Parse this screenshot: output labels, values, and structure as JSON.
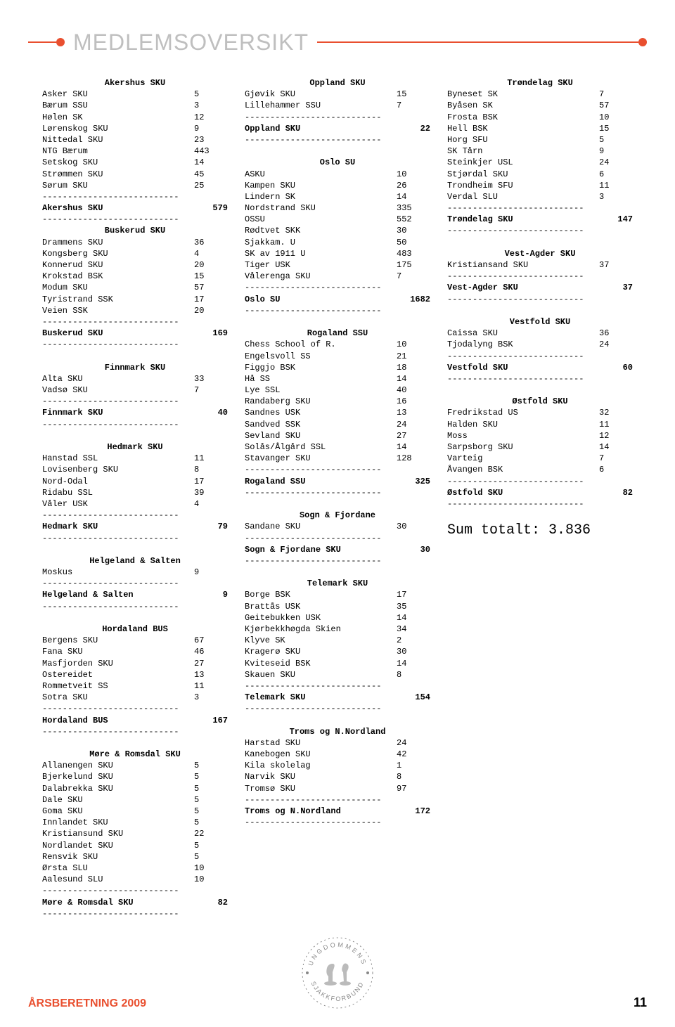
{
  "header": {
    "title": "MEDLEMSOVERSIKT"
  },
  "footer": {
    "left": "ÅRSBERETNING 2009",
    "page": "11"
  },
  "sum_total_label": "Sum totalt: 3.836",
  "dash": "---------------------------",
  "sections": [
    {
      "title": "Akershus SKU",
      "col": 0,
      "items": [
        [
          "Asker SKU",
          "5"
        ],
        [
          "Bærum SSU",
          "3"
        ],
        [
          "Hølen SK",
          "12"
        ],
        [
          "Lørenskog SKU",
          "9"
        ],
        [
          "Nittedal SKU",
          "23"
        ],
        [
          "NTG Bærum",
          "443"
        ],
        [
          "Setskog SKU",
          "14"
        ],
        [
          "Strømmen SKU",
          "45"
        ],
        [
          "Sørum SKU",
          "25"
        ]
      ],
      "total": [
        "Akershus SKU",
        "579"
      ]
    },
    {
      "title": "Buskerud SKU",
      "col": 0,
      "items": [
        [
          "Drammens SKU",
          "36"
        ],
        [
          "Kongsberg SKU",
          "4"
        ],
        [
          "Konnerud SKU",
          "20"
        ],
        [
          "Krokstad BSK",
          "15"
        ],
        [
          "Modum SKU",
          "57"
        ],
        [
          "Tyristrand SSK",
          "17"
        ],
        [
          "Veien SSK",
          "20"
        ]
      ],
      "total": [
        "Buskerud SKU",
        "169"
      ]
    },
    {
      "title": "Finnmark SKU",
      "col": 0,
      "blank_before": true,
      "items": [
        [
          "Alta SKU",
          "33"
        ],
        [
          "Vadsø SKU",
          "7"
        ]
      ],
      "total": [
        "Finnmark SKU",
        "40"
      ]
    },
    {
      "title": "Hedmark SKU",
      "col": 0,
      "blank_before": true,
      "items": [
        [
          "Hanstad SSL",
          "11"
        ],
        [
          "Lovisenberg SKU",
          "8"
        ],
        [
          "Nord-Odal",
          "17"
        ],
        [
          "Ridabu SSL",
          "39"
        ],
        [
          "Våler USK",
          "4"
        ]
      ],
      "total": [
        "Hedmark SKU",
        "79"
      ]
    },
    {
      "title": "Helgeland & Salten",
      "col": 0,
      "blank_before": true,
      "items": [
        [
          "Moskus",
          "9"
        ]
      ],
      "total": [
        "Helgeland & Salten",
        "9"
      ]
    },
    {
      "title": "Hordaland BUS",
      "col": 0,
      "blank_before": true,
      "items": [
        [
          "Bergens SKU",
          "67"
        ],
        [
          "Fana SKU",
          "46"
        ],
        [
          "Masfjorden SKU",
          "27"
        ],
        [
          "Ostereidet",
          "13"
        ],
        [
          "Rommetveit SS",
          "11"
        ],
        [
          "Sotra SKU",
          "3"
        ]
      ],
      "total": [
        "Hordaland BUS",
        "167"
      ]
    },
    {
      "title": "Møre & Romsdal SKU",
      "col": 0,
      "blank_before": true,
      "items": [
        [
          "Allanengen SKU",
          "5"
        ],
        [
          "Bjerkelund SKU",
          "5"
        ],
        [
          "Dalabrekka SKU",
          "5"
        ],
        [
          "Dale SKU",
          "5"
        ],
        [
          "Goma SKU",
          "5"
        ],
        [
          "Innlandet SKU",
          "5"
        ],
        [
          "Kristiansund SKU",
          "22"
        ],
        [
          "Nordlandet SKU",
          "5"
        ],
        [
          "Rensvik SKU",
          "5"
        ],
        [
          "Ørsta SLU",
          "10"
        ],
        [
          "Aalesund SLU",
          "10"
        ]
      ],
      "total": [
        "Møre & Romsdal SKU",
        "82"
      ]
    },
    {
      "title": "Oppland SKU",
      "col": 1,
      "items": [
        [
          "Gjøvik SKU",
          "15"
        ],
        [
          "Lillehammer SSU",
          "7"
        ]
      ],
      "total": [
        "Oppland SKU",
        "22"
      ]
    },
    {
      "title": "Oslo SU",
      "col": 1,
      "blank_before": true,
      "items": [
        [
          "ASKU",
          "10"
        ],
        [
          "Kampen SKU",
          "26"
        ],
        [
          "Lindern SK",
          "14"
        ],
        [
          "Nordstrand SKU",
          "335"
        ],
        [
          "OSSU",
          "552"
        ],
        [
          "Rødtvet SKK",
          "30"
        ],
        [
          "Sjakkam. U",
          "50"
        ],
        [
          "SK av 1911 U",
          "483"
        ],
        [
          "Tiger USK",
          "175"
        ],
        [
          "Vålerenga SKU",
          "7"
        ]
      ],
      "total": [
        "Oslo SU",
        "1682"
      ]
    },
    {
      "title": "Rogaland SSU",
      "col": 1,
      "blank_before": true,
      "items": [
        [
          "Chess School of R.",
          "10"
        ],
        [
          "Engelsvoll SS",
          "21"
        ],
        [
          "Figgjo BSK",
          "18"
        ],
        [
          "Hå SS",
          "14"
        ],
        [
          "Lye SSL",
          "40"
        ],
        [
          "Randaberg SKU",
          "16"
        ],
        [
          "Sandnes USK",
          "13"
        ],
        [
          "Sandved SSK",
          "24"
        ],
        [
          "Sevland SKU",
          "27"
        ],
        [
          "Solås/Ålgård SSL",
          "14"
        ],
        [
          "Stavanger SKU",
          "128"
        ]
      ],
      "total": [
        "Rogaland SSU",
        "325"
      ]
    },
    {
      "title": "Sogn & Fjordane",
      "col": 1,
      "blank_before": true,
      "items": [
        [
          "Sandane SKU",
          "30"
        ]
      ],
      "total": [
        "Sogn & Fjordane SKU",
        "30"
      ]
    },
    {
      "title": "Telemark SKU",
      "col": 1,
      "blank_before": true,
      "items": [
        [
          "Borge BSK",
          "17"
        ],
        [
          "Brattås USK",
          "35"
        ],
        [
          "Geitebukken USK",
          "14"
        ],
        [
          "Kjørbekkhøgda Skien",
          "34"
        ],
        [
          "Klyve SK",
          "2"
        ],
        [
          "Kragerø SKU",
          "30"
        ],
        [
          "Kviteseid BSK",
          "14"
        ],
        [
          "Skauen SKU",
          "8"
        ]
      ],
      "total": [
        "Telemark SKU",
        "154"
      ]
    },
    {
      "title": "Troms og N.Nordland",
      "col": 1,
      "blank_before": true,
      "items": [
        [
          "Harstad SKU",
          "24"
        ],
        [
          "Kanebogen SKU",
          "42"
        ],
        [
          "Kila skolelag",
          "1"
        ],
        [
          "Narvik SKU",
          "8"
        ],
        [
          "Tromsø SKU",
          "97"
        ]
      ],
      "total": [
        "Troms og N.Nordland",
        "172"
      ]
    },
    {
      "title": "Trøndelag SKU",
      "col": 2,
      "items": [
        [
          "Byneset SK",
          "7"
        ],
        [
          "Byåsen SK",
          "57"
        ],
        [
          "Frosta BSK",
          "10"
        ],
        [
          "Hell BSK",
          "15"
        ],
        [
          "Horg SFU",
          "5"
        ],
        [
          "SK Tårn",
          "9"
        ],
        [
          "Steinkjer USL",
          "24"
        ],
        [
          "Stjørdal SKU",
          "6"
        ],
        [
          "Trondheim SFU",
          "11"
        ],
        [
          "Verdal SLU",
          "3"
        ]
      ],
      "total": [
        "Trøndelag SKU",
        "147"
      ]
    },
    {
      "title": "Vest-Agder SKU",
      "col": 2,
      "blank_before": true,
      "items": [
        [
          "Kristiansand SKU",
          "37"
        ]
      ],
      "total": [
        "Vest-Agder SKU",
        "37"
      ]
    },
    {
      "title": "Vestfold SKU",
      "col": 2,
      "blank_before": true,
      "items": [
        [
          "Caissa SKU",
          "36"
        ],
        [
          "Tjodalyng BSK",
          "24"
        ]
      ],
      "total": [
        "Vestfold SKU",
        "60"
      ]
    },
    {
      "title": "Østfold SKU",
      "col": 2,
      "blank_before": true,
      "items": [
        [
          "Fredrikstad US",
          "32"
        ],
        [
          "Halden SKU",
          "11"
        ],
        [
          "Moss",
          "12"
        ],
        [
          "Sarpsborg SKU",
          "14"
        ],
        [
          "Varteig",
          "7"
        ],
        [
          "Åvangen BSK",
          "6"
        ]
      ],
      "total": [
        "Østfold SKU",
        "82"
      ]
    }
  ]
}
